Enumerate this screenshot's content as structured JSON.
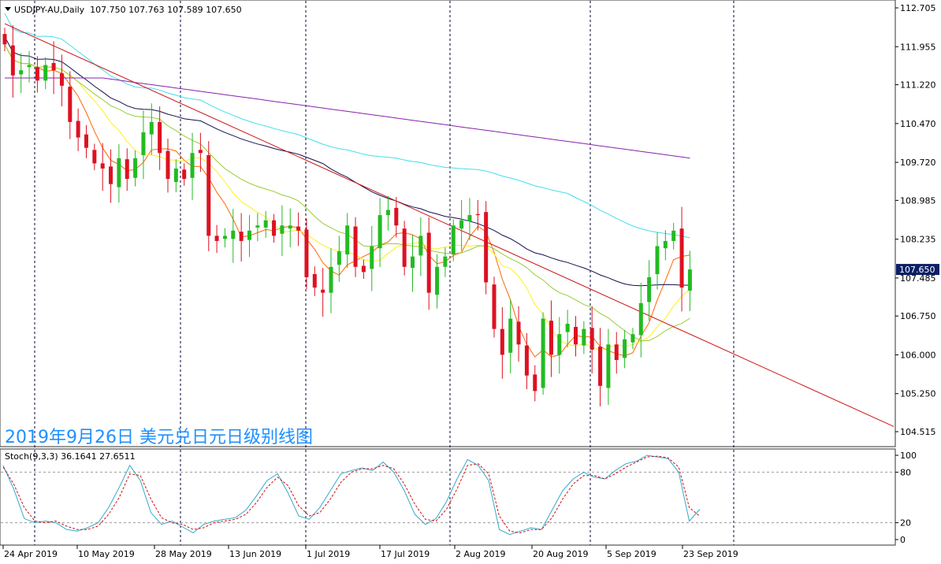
{
  "symbol_header": {
    "text": "USDJPY-AU,Daily  107.750 107.763 107.589 107.650"
  },
  "watermark": "2019年9月26日 美元兑日元日级别线图",
  "stoch_label": "Stoch(9,3,3) 36.1641 27.6511",
  "current_price_label": "107.650",
  "colors": {
    "bull": "#22bb22",
    "bear": "#dd1122",
    "ma_fast": "#ff6600",
    "ma_mid": "#ffee22",
    "ma_slow": "#99cc33",
    "ma_navy": "#101050",
    "ma_cyan": "#44ddee",
    "ma_purple": "#8822aa",
    "trendline": "#cc1111",
    "stoch_main": "#33aacc",
    "stoch_signal": "#cc1111",
    "watermark": "#1e90ff",
    "price_tag_bg": "#0b1f66"
  },
  "chart_data": [
    {
      "type": "candlestick",
      "title": "USDJPY-AU,Daily",
      "price_axis_ticks": [
        "112.705",
        "111.955",
        "111.220",
        "110.470",
        "109.720",
        "108.985",
        "108.235",
        "107.485",
        "106.750",
        "106.000",
        "105.250",
        "104.515"
      ],
      "date_labels": [
        "24 Apr 2019",
        "10 May 2019",
        "28 May 2019",
        "13 Jun 2019",
        "1 Jul 2019",
        "17 Jul 2019",
        "2 Aug 2019",
        "20 Aug 2019",
        "5 Sep 2019",
        "23 Sep 2019"
      ],
      "ylim": [
        104.3,
        112.75
      ],
      "bars": 85,
      "ohlc_close": [
        112.0,
        111.4,
        111.5,
        111.6,
        111.3,
        111.6,
        111.5,
        111.2,
        110.5,
        110.2,
        110.0,
        109.7,
        109.6,
        109.3,
        109.8,
        109.4,
        109.8,
        110.3,
        110.5,
        109.9,
        109.4,
        109.6,
        109.4,
        109.9,
        109.9,
        108.3,
        108.2,
        108.3,
        108.4,
        108.2,
        108.4,
        108.5,
        108.6,
        108.3,
        108.5,
        108.5,
        108.4,
        107.5,
        107.3,
        107.2,
        107.7,
        108.0,
        108.5,
        107.7,
        107.6,
        108.1,
        108.7,
        108.8,
        108.5,
        107.7,
        107.9,
        108.3,
        107.2,
        107.7,
        107.9,
        108.5,
        108.6,
        108.7,
        108.7,
        107.4,
        106.5,
        106.0,
        106.7,
        106.2,
        105.6,
        105.3,
        106.7,
        106.0,
        106.4,
        106.6,
        106.2,
        106.5,
        106.1,
        105.4,
        106.2,
        105.9,
        106.3,
        106.4,
        107.0,
        107.5,
        108.1,
        108.2,
        108.4,
        107.3,
        107.65
      ],
      "moving_averages": [
        "orange (fast)",
        "yellow",
        "yellow-green",
        "navy",
        "cyan",
        "purple"
      ],
      "trendline": {
        "from": [
          0,
          112.4
        ],
        "to": [
          84,
          106.4
        ]
      },
      "current_price": 107.65
    },
    {
      "type": "line",
      "title": "Stoch(9,3,3)",
      "main": 36.1641,
      "signal": 27.6511,
      "ylim": [
        0,
        100
      ],
      "levels": [
        80,
        20
      ],
      "axis_ticks": [
        "100",
        "80",
        "20",
        "0"
      ],
      "series": [
        {
          "name": "main",
          "values": [
            88,
            60,
            25,
            20,
            22,
            20,
            12,
            10,
            14,
            20,
            38,
            62,
            88,
            70,
            32,
            18,
            22,
            15,
            8,
            18,
            22,
            24,
            26,
            35,
            52,
            70,
            78,
            55,
            28,
            24,
            38,
            58,
            78,
            82,
            85,
            82,
            92,
            80,
            58,
            30,
            18,
            25,
            45,
            72,
            95,
            88,
            70,
            12,
            6,
            10,
            14,
            12,
            35,
            58,
            72,
            80,
            74,
            72,
            82,
            90,
            93,
            100,
            98,
            96,
            80,
            22,
            36
          ]
        },
        {
          "name": "signal",
          "values": [
            86,
            66,
            38,
            22,
            20,
            22,
            16,
            12,
            12,
            16,
            30,
            50,
            78,
            76,
            48,
            26,
            20,
            18,
            12,
            14,
            20,
            22,
            24,
            30,
            44,
            62,
            74,
            64,
            40,
            28,
            32,
            48,
            68,
            80,
            84,
            84,
            88,
            84,
            66,
            42,
            24,
            22,
            36,
            60,
            88,
            90,
            78,
            28,
            10,
            8,
            12,
            12,
            26,
            48,
            66,
            76,
            76,
            72,
            78,
            86,
            92,
            98,
            99,
            97,
            86,
            38,
            27.65
          ]
        }
      ]
    }
  ]
}
